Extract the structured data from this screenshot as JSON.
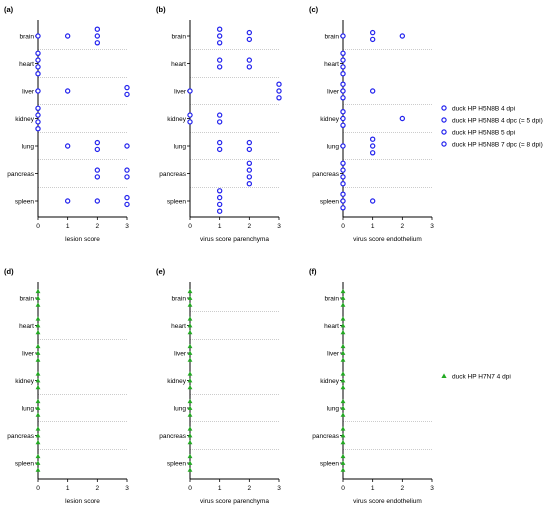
{
  "chart_data": [
    {
      "type": "scatter",
      "panel_label": "(a)",
      "xlabel": "lesion score",
      "xlim": [
        0,
        3
      ],
      "x_ticks": [
        "0",
        "1",
        "2",
        "3"
      ],
      "categories": [
        "brain",
        "heart",
        "liver",
        "kidney",
        "lung",
        "pancreas",
        "spleen"
      ],
      "separators": [
        0,
        1,
        2,
        3,
        4,
        5
      ],
      "series": [
        {
          "name": "duck HP H5N8B 4 dpi",
          "color": "#2222ee",
          "marker": "circle",
          "points": [
            [
              "brain",
              1
            ],
            [
              "brain",
              2
            ],
            [
              "heart",
              0
            ],
            [
              "liver",
              0
            ],
            [
              "kidney",
              0
            ],
            [
              "lung",
              1
            ],
            [
              "pancreas",
              2
            ],
            [
              "spleen",
              1
            ]
          ]
        },
        {
          "name": "duck HP H5N8B 4 dpc (= 5 dpi)",
          "color": "#2222ee",
          "marker": "circle",
          "points": [
            [
              "brain",
              2
            ],
            [
              "heart",
              0
            ],
            [
              "liver",
              3
            ],
            [
              "kidney",
              0
            ],
            [
              "lung",
              2
            ],
            [
              "pancreas",
              3
            ],
            [
              "spleen",
              3
            ]
          ]
        },
        {
          "name": "duck HP H5N8B 5 dpi",
          "color": "#2222ee",
          "marker": "circle",
          "points": [
            [
              "brain",
              2
            ],
            [
              "heart",
              0
            ],
            [
              "liver",
              3
            ],
            [
              "kidney",
              0
            ],
            [
              "lung",
              2
            ],
            [
              "pancreas",
              3
            ],
            [
              "spleen",
              3
            ]
          ]
        },
        {
          "name": "duck HP H5N8B 7 dpc (= 8 dpi)",
          "color": "#2222ee",
          "marker": "circle",
          "points": [
            [
              "brain",
              0
            ],
            [
              "heart",
              0
            ],
            [
              "liver",
              1
            ],
            [
              "kidney",
              0
            ],
            [
              "lung",
              3
            ],
            [
              "pancreas",
              2
            ],
            [
              "spleen",
              2
            ]
          ]
        }
      ]
    },
    {
      "type": "scatter",
      "panel_label": "(b)",
      "xlabel": "virus score parenchyma",
      "xlim": [
        0,
        3
      ],
      "x_ticks": [
        "0",
        "1",
        "2",
        "3"
      ],
      "categories": [
        "brain",
        "heart",
        "liver",
        "kidney",
        "lung",
        "pancreas",
        "spleen"
      ],
      "separators": [
        0,
        1,
        2,
        3,
        4,
        5
      ],
      "series": [
        {
          "name": "duck HP H5N8B 4 dpi",
          "color": "#2222ee",
          "marker": "circle",
          "points": [
            [
              "brain",
              1
            ],
            [
              "brain",
              1
            ],
            [
              "heart",
              1
            ],
            [
              "liver",
              0
            ],
            [
              "kidney",
              1
            ],
            [
              "lung",
              1
            ],
            [
              "pancreas",
              2
            ],
            [
              "spleen",
              1
            ]
          ]
        },
        {
          "name": "duck HP H5N8B 4 dpc (= 5 dpi)",
          "color": "#2222ee",
          "marker": "circle",
          "points": [
            [
              "brain",
              2
            ],
            [
              "heart",
              2
            ],
            [
              "liver",
              3
            ],
            [
              "kidney",
              0
            ],
            [
              "lung",
              2
            ],
            [
              "pancreas",
              2
            ],
            [
              "spleen",
              1
            ]
          ]
        },
        {
          "name": "duck HP H5N8B 5 dpi",
          "color": "#2222ee",
          "marker": "circle",
          "points": [
            [
              "brain",
              2
            ],
            [
              "heart",
              2
            ],
            [
              "liver",
              3
            ],
            [
              "kidney",
              1
            ],
            [
              "lung",
              2
            ],
            [
              "pancreas",
              2
            ],
            [
              "spleen",
              1
            ]
          ]
        },
        {
          "name": "duck HP H5N8B 7 dpc (= 8 dpi)",
          "color": "#2222ee",
          "marker": "circle",
          "points": [
            [
              "brain",
              1
            ],
            [
              "heart",
              1
            ],
            [
              "liver",
              3
            ],
            [
              "kidney",
              0
            ],
            [
              "lung",
              1
            ],
            [
              "pancreas",
              2
            ],
            [
              "spleen",
              1
            ]
          ]
        }
      ]
    },
    {
      "type": "scatter",
      "panel_label": "(c)",
      "xlabel": "virus score endothelium",
      "xlim": [
        0,
        3
      ],
      "x_ticks": [
        "0",
        "1",
        "2",
        "3"
      ],
      "categories": [
        "brain",
        "heart",
        "liver",
        "kidney",
        "lung",
        "pancreas",
        "spleen"
      ],
      "separators": [
        0,
        2,
        3,
        4,
        5
      ],
      "series": [
        {
          "name": "duck HP H5N8B 4 dpi",
          "color": "#2222ee",
          "marker": "circle",
          "points": [
            [
              "brain",
              1
            ],
            [
              "heart",
              0
            ],
            [
              "liver",
              0
            ],
            [
              "kidney",
              0
            ],
            [
              "lung",
              1
            ],
            [
              "pancreas",
              0
            ],
            [
              "spleen",
              1
            ]
          ]
        },
        {
          "name": "duck HP H5N8B 4 dpc (= 5 dpi)",
          "color": "#2222ee",
          "marker": "circle",
          "points": [
            [
              "brain",
              2
            ],
            [
              "heart",
              0
            ],
            [
              "liver",
              1
            ],
            [
              "kidney",
              2
            ],
            [
              "lung",
              1
            ],
            [
              "pancreas",
              0
            ],
            [
              "spleen",
              0
            ]
          ]
        },
        {
          "name": "duck HP H5N8B 5 dpi",
          "color": "#2222ee",
          "marker": "circle",
          "points": [
            [
              "brain",
              1
            ],
            [
              "heart",
              0
            ],
            [
              "liver",
              0
            ],
            [
              "kidney",
              0
            ],
            [
              "lung",
              1
            ],
            [
              "pancreas",
              0
            ],
            [
              "spleen",
              0
            ]
          ]
        },
        {
          "name": "duck HP H5N8B 7 dpc (= 8 dpi)",
          "color": "#2222ee",
          "marker": "circle",
          "points": [
            [
              "brain",
              0
            ],
            [
              "heart",
              0
            ],
            [
              "liver",
              0
            ],
            [
              "kidney",
              0
            ],
            [
              "lung",
              0
            ],
            [
              "pancreas",
              0
            ],
            [
              "spleen",
              0
            ]
          ]
        }
      ]
    },
    {
      "type": "scatter",
      "panel_label": "(d)",
      "xlabel": "lesion score",
      "xlim": [
        0,
        3
      ],
      "x_ticks": [
        "0",
        "1",
        "2",
        "3"
      ],
      "categories": [
        "brain",
        "heart",
        "liver",
        "kidney",
        "lung",
        "pancreas",
        "spleen"
      ],
      "separators": [
        1,
        3,
        4,
        5
      ],
      "series": [
        {
          "name": "duck HP H7N7 4 dpi",
          "color": "#22aa22",
          "marker": "triangle",
          "points": [
            [
              "brain",
              0
            ],
            [
              "brain",
              0
            ],
            [
              "brain",
              0
            ],
            [
              "heart",
              0
            ],
            [
              "heart",
              0
            ],
            [
              "heart",
              0
            ],
            [
              "liver",
              0
            ],
            [
              "liver",
              0
            ],
            [
              "liver",
              0
            ],
            [
              "kidney",
              0
            ],
            [
              "kidney",
              0
            ],
            [
              "kidney",
              0
            ],
            [
              "lung",
              0
            ],
            [
              "lung",
              0
            ],
            [
              "lung",
              0
            ],
            [
              "pancreas",
              0
            ],
            [
              "pancreas",
              0
            ],
            [
              "pancreas",
              0
            ],
            [
              "spleen",
              0
            ],
            [
              "spleen",
              0
            ],
            [
              "spleen",
              0
            ]
          ]
        }
      ]
    },
    {
      "type": "scatter",
      "panel_label": "(e)",
      "xlabel": "virus score parenchyma",
      "xlim": [
        0,
        3
      ],
      "x_ticks": [
        "0",
        "1",
        "2",
        "3"
      ],
      "categories": [
        "brain",
        "heart",
        "liver",
        "kidney",
        "lung",
        "pancreas",
        "spleen"
      ],
      "separators": [
        0,
        1,
        3,
        4,
        5
      ],
      "series": [
        {
          "name": "duck HP H7N7 4 dpi",
          "color": "#22aa22",
          "marker": "triangle",
          "points": [
            [
              "brain",
              0
            ],
            [
              "brain",
              0
            ],
            [
              "brain",
              0
            ],
            [
              "heart",
              0
            ],
            [
              "heart",
              0
            ],
            [
              "heart",
              0
            ],
            [
              "liver",
              0
            ],
            [
              "liver",
              0
            ],
            [
              "liver",
              0
            ],
            [
              "kidney",
              0
            ],
            [
              "kidney",
              0
            ],
            [
              "kidney",
              0
            ],
            [
              "lung",
              0
            ],
            [
              "lung",
              0
            ],
            [
              "lung",
              0
            ],
            [
              "pancreas",
              0
            ],
            [
              "pancreas",
              0
            ],
            [
              "pancreas",
              0
            ],
            [
              "spleen",
              0
            ],
            [
              "spleen",
              0
            ],
            [
              "spleen",
              0
            ]
          ]
        }
      ]
    },
    {
      "type": "scatter",
      "panel_label": "(f)",
      "xlabel": "virus score endothelium",
      "xlim": [
        0,
        3
      ],
      "x_ticks": [
        "0",
        "1",
        "2",
        "3"
      ],
      "categories": [
        "brain",
        "heart",
        "liver",
        "kidney",
        "lung",
        "pancreas",
        "spleen"
      ],
      "separators": [
        4,
        5
      ],
      "series": [
        {
          "name": "duck HP H7N7 4 dpi",
          "color": "#22aa22",
          "marker": "triangle",
          "points": [
            [
              "brain",
              0
            ],
            [
              "brain",
              0
            ],
            [
              "brain",
              0
            ],
            [
              "heart",
              0
            ],
            [
              "heart",
              0
            ],
            [
              "heart",
              0
            ],
            [
              "liver",
              0
            ],
            [
              "liver",
              0
            ],
            [
              "liver",
              0
            ],
            [
              "kidney",
              0
            ],
            [
              "kidney",
              0
            ],
            [
              "kidney",
              0
            ],
            [
              "lung",
              0
            ],
            [
              "lung",
              0
            ],
            [
              "lung",
              0
            ],
            [
              "pancreas",
              0
            ],
            [
              "pancreas",
              0
            ],
            [
              "pancreas",
              0
            ],
            [
              "spleen",
              0
            ],
            [
              "spleen",
              0
            ],
            [
              "spleen",
              0
            ]
          ]
        }
      ]
    }
  ],
  "legends": [
    {
      "marker": "circle",
      "color": "#2222ee",
      "entries": [
        "duck HP H5N8B 4 dpi",
        "duck HP H5N8B 4 dpc (= 5 dpi)",
        "duck HP H5N8B 5 dpi",
        "duck HP H5N8B 7 dpc (= 8 dpi)"
      ]
    },
    {
      "marker": "triangle",
      "color": "#22aa22",
      "entries": [
        "duck HP H7N7 4 dpi"
      ]
    }
  ]
}
